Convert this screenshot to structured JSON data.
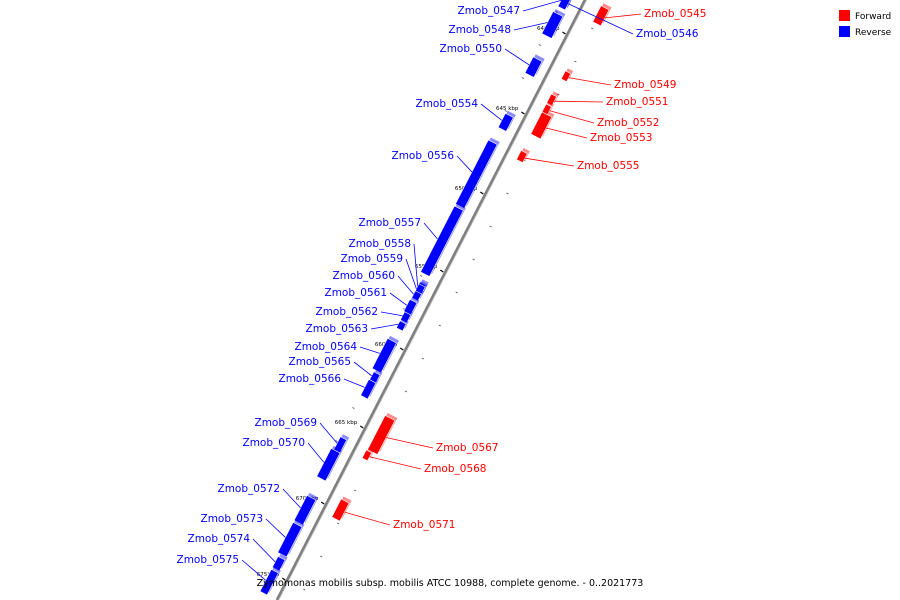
{
  "caption": "Zymomonas mobilis subsp. mobilis ATCC 10988, complete genome. - 0..2021773",
  "legend": [
    {
      "label": "Forward",
      "color": "#ff0000"
    },
    {
      "label": "Reverse",
      "color": "#0000ff"
    }
  ],
  "colors": {
    "forward": "#ff0000",
    "reverse": "#0000ff",
    "backbone": "#808080"
  },
  "axis": {
    "unit": "kbp",
    "tick_labels": [
      "640 kbp",
      "645 kbp",
      "650 kbp",
      "655 kbp",
      "660 kbp",
      "665 kbp",
      "670 kbp",
      "675 kbp"
    ]
  },
  "genes": [
    {
      "name": "Zmob_0545",
      "strand": "forward"
    },
    {
      "name": "Zmob_0546",
      "strand": "reverse"
    },
    {
      "name": "Zmob_0547",
      "strand": "reverse"
    },
    {
      "name": "Zmob_0548",
      "strand": "reverse"
    },
    {
      "name": "Zmob_0549",
      "strand": "forward"
    },
    {
      "name": "Zmob_0550",
      "strand": "reverse"
    },
    {
      "name": "Zmob_0551",
      "strand": "forward"
    },
    {
      "name": "Zmob_0552",
      "strand": "forward"
    },
    {
      "name": "Zmob_0553",
      "strand": "forward"
    },
    {
      "name": "Zmob_0554",
      "strand": "reverse"
    },
    {
      "name": "Zmob_0555",
      "strand": "forward"
    },
    {
      "name": "Zmob_0556",
      "strand": "reverse"
    },
    {
      "name": "Zmob_0557",
      "strand": "reverse"
    },
    {
      "name": "Zmob_0558",
      "strand": "reverse"
    },
    {
      "name": "Zmob_0559",
      "strand": "reverse"
    },
    {
      "name": "Zmob_0560",
      "strand": "reverse"
    },
    {
      "name": "Zmob_0561",
      "strand": "reverse"
    },
    {
      "name": "Zmob_0562",
      "strand": "reverse"
    },
    {
      "name": "Zmob_0563",
      "strand": "reverse"
    },
    {
      "name": "Zmob_0564",
      "strand": "reverse"
    },
    {
      "name": "Zmob_0565",
      "strand": "reverse"
    },
    {
      "name": "Zmob_0566",
      "strand": "reverse"
    },
    {
      "name": "Zmob_0567",
      "strand": "forward"
    },
    {
      "name": "Zmob_0568",
      "strand": "forward"
    },
    {
      "name": "Zmob_0569",
      "strand": "reverse"
    },
    {
      "name": "Zmob_0570",
      "strand": "reverse"
    },
    {
      "name": "Zmob_0571",
      "strand": "forward"
    },
    {
      "name": "Zmob_0572",
      "strand": "reverse"
    },
    {
      "name": "Zmob_0573",
      "strand": "reverse"
    },
    {
      "name": "Zmob_0574",
      "strand": "reverse"
    },
    {
      "name": "Zmob_0575",
      "strand": "reverse"
    }
  ]
}
